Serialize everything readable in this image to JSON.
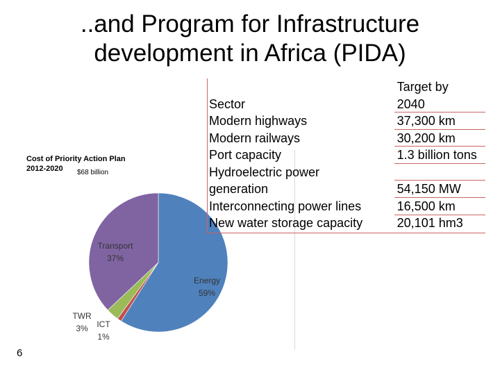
{
  "title_line1": "..and Program for Infrastructure",
  "title_line2": "development in Africa (PIDA)",
  "page_number": "6",
  "chart_data": {
    "type": "pie",
    "title_line1": "Cost of Priority Action Plan",
    "title_line2": "2012-2020",
    "total": "$68 billion",
    "slices": [
      {
        "name": "Energy",
        "percent_label": "59%",
        "value": 59,
        "color": "#4F81BD"
      },
      {
        "name": "ICT",
        "percent_label": "1%",
        "value": 1,
        "color": "#C0504D"
      },
      {
        "name": "TWR",
        "percent_label": "3%",
        "value": 3,
        "color": "#9BBB59"
      },
      {
        "name": "Transport",
        "percent_label": "37%",
        "value": 37,
        "color": "#8064A2"
      }
    ]
  },
  "table": {
    "header": {
      "sector": "Sector",
      "target_line1": "Target by",
      "target_line2": "2040"
    },
    "rows": [
      {
        "sector": "Modern highways",
        "target": "37,300 km"
      },
      {
        "sector": "Modern railways",
        "target": "30,200 km"
      },
      {
        "sector": "Port capacity",
        "target": "1.3 billion tons"
      },
      {
        "sector_line1": "Hydroelectric power",
        "sector_line2": "generation",
        "target": "54,150 MW"
      },
      {
        "sector": "Interconnecting power lines",
        "target": "16,500 km"
      },
      {
        "sector": "New water storage capacity",
        "target": "20,101 hm3"
      }
    ]
  }
}
